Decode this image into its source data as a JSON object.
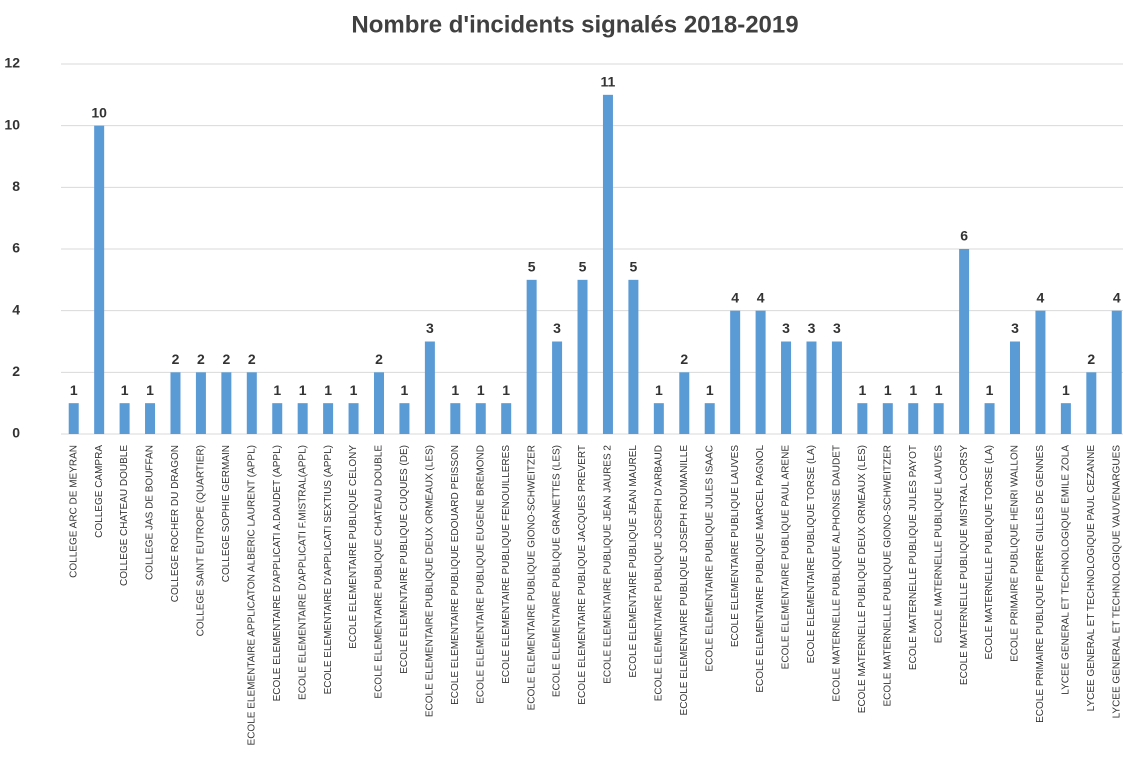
{
  "chart_data": {
    "type": "bar",
    "title": "Nombre d'incidents signalés 2018-2019",
    "categories": [
      "COLLEGE ARC DE MEYRAN",
      "COLLEGE CAMPRA",
      "COLLEGE CHATEAU DOUBLE",
      "COLLEGE JAS DE BOUFFAN",
      "COLLEGE ROCHER DU DRAGON",
      "COLLEGE SAINT EUTROPE (QUARTIER)",
      "COLLEGE SOPHIE GERMAIN",
      "ECOLE ELEMENTAIRE APPLICATON ALBERIC LAURENT (APPL)",
      "ECOLE ELEMENTAIRE D'APPLICATI A.DAUDET (APPL)",
      "ECOLE ELEMENTAIRE D'APPLICATI F.MISTRAL(APPL)",
      "ECOLE ELEMENTAIRE D'APPLICATI SEXTIUS (APPL)",
      "ECOLE ELEMENTAIRE PUBLIQUE CELONY",
      "ECOLE ELEMENTAIRE PUBLIQUE CHATEAU DOUBLE",
      "ECOLE ELEMENTAIRE PUBLIQUE CUQUES (DE)",
      "ECOLE ELEMENTAIRE PUBLIQUE DEUX ORMEAUX (LES)",
      "ECOLE ELEMENTAIRE PUBLIQUE EDOUARD PEISSON",
      "ECOLE ELEMENTAIRE PUBLIQUE EUGENE BREMOND",
      "ECOLE ELEMENTAIRE PUBLIQUE FENOUILLERES",
      "ECOLE ELEMENTAIRE PUBLIQUE GIONO-SCHWEITZER",
      "ECOLE ELEMENTAIRE PUBLIQUE GRANETTES (LES)",
      "ECOLE ELEMENTAIRE PUBLIQUE JACQUES PREVERT",
      "ECOLE ELEMENTAIRE PUBLIQUE JEAN JAURES 2",
      "ECOLE ELEMENTAIRE PUBLIQUE JEAN MAUREL",
      "ECOLE ELEMENTAIRE PUBLIQUE JOSEPH D'ARBAUD",
      "ECOLE ELEMENTAIRE PUBLIQUE JOSEPH ROUMANILLE",
      "ECOLE ELEMENTAIRE PUBLIQUE JULES ISAAC",
      "ECOLE ELEMENTAIRE PUBLIQUE LAUVES",
      "ECOLE ELEMENTAIRE PUBLIQUE MARCEL PAGNOL",
      "ECOLE ELEMENTAIRE PUBLIQUE PAUL ARENE",
      "ECOLE ELEMENTAIRE PUBLIQUE TORSE (LA)",
      "ECOLE MATERNELLE PUBLIQUE ALPHONSE DAUDET",
      "ECOLE MATERNELLE PUBLIQUE DEUX ORMEAUX (LES)",
      "ECOLE MATERNELLE PUBLIQUE GIONO-SCHWEITZER",
      "ECOLE MATERNELLE PUBLIQUE JULES PAYOT",
      "ECOLE MATERNELLE PUBLIQUE LAUVES",
      "ECOLE MATERNELLE PUBLIQUE MISTRAL CORSY",
      "ECOLE MATERNELLE PUBLIQUE TORSE (LA)",
      "ECOLE PRIMAIRE PUBLIQUE HENRI WALLON",
      "ECOLE PRIMAIRE PUBLIQUE PIERRE GILLES DE GENNES",
      "LYCEE GENERAL ET TECHNOLOGIQUE EMILE ZOLA",
      "LYCEE GENERAL ET TECHNOLOGIQUE PAUL CEZANNE",
      "LYCEE GENERAL ET TECHNOLOGIQUE VAUVENARGUES"
    ],
    "values": [
      1,
      10,
      1,
      1,
      2,
      2,
      2,
      2,
      1,
      1,
      1,
      1,
      2,
      1,
      3,
      1,
      1,
      1,
      5,
      3,
      5,
      11,
      5,
      1,
      2,
      1,
      4,
      4,
      3,
      3,
      3,
      1,
      1,
      1,
      1,
      6,
      1,
      3,
      4,
      1,
      2,
      4
    ],
    "color": "#5b9bd5",
    "ylim": [
      0,
      12
    ],
    "yticks": [
      0,
      2,
      4,
      6,
      8,
      10,
      12
    ],
    "grid": true
  }
}
